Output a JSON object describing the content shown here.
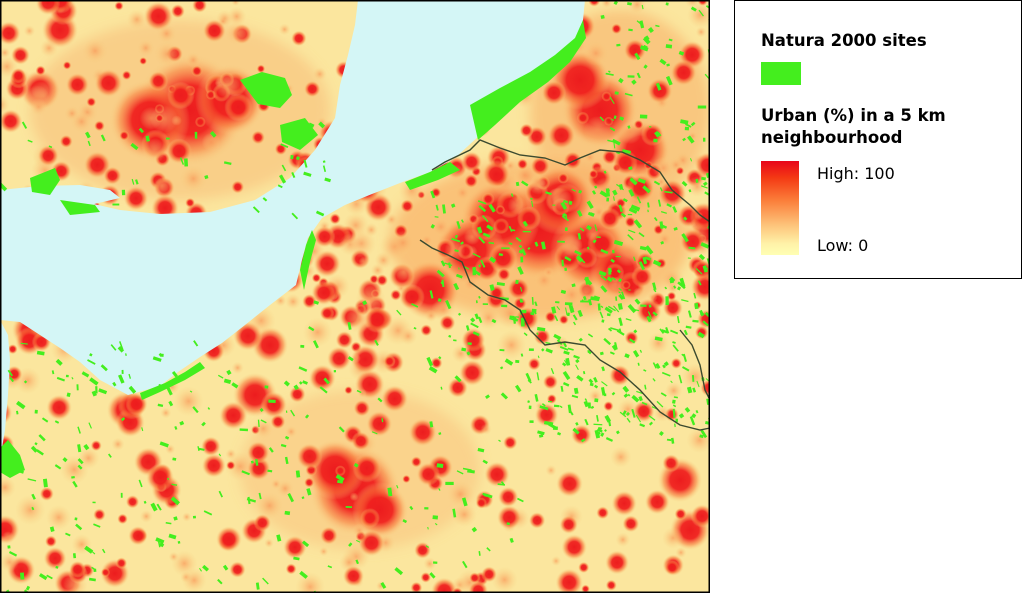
{
  "legend": {
    "natura_title": "Natura 2000 sites",
    "natura_color": "#44ee1e",
    "urban_title": "Urban (%) in a 5 km neighbourhood",
    "high_label": "High: 100",
    "low_label": "Low: 0",
    "gradient_high_color": "#e8061a",
    "gradient_low_color": "#ffffb3"
  },
  "map": {
    "sea_color": "#d4f6f6",
    "land_base_color": "#fbe69e",
    "border_color": "#3b4a2f"
  }
}
